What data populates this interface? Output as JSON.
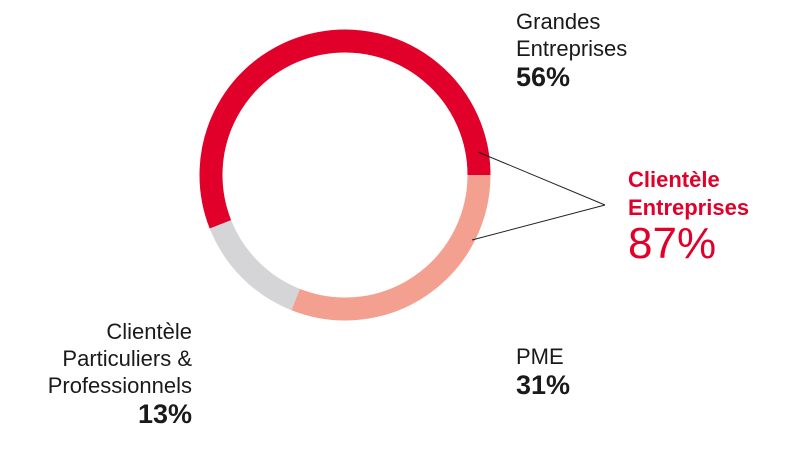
{
  "chart_data": {
    "type": "donut",
    "categories": [
      "Grandes Entreprises",
      "PME",
      "Clientèle Particuliers & Professionnels"
    ],
    "values": [
      56,
      31,
      13
    ],
    "value_labels": [
      "56%",
      "31%",
      "13%"
    ],
    "colors": [
      "#e1002a",
      "#f3a090",
      "#d5d5d7"
    ],
    "annotation": {
      "text": "Clientèle Entreprises",
      "value": 87,
      "value_label": "87%",
      "color": "#e1002a"
    }
  }
}
